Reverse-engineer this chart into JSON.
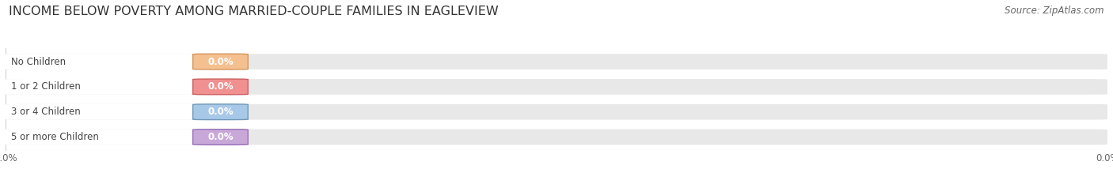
{
  "title": "INCOME BELOW POVERTY AMONG MARRIED-COUPLE FAMILIES IN EAGLEVIEW",
  "source": "Source: ZipAtlas.com",
  "categories": [
    "No Children",
    "1 or 2 Children",
    "3 or 4 Children",
    "5 or more Children"
  ],
  "values": [
    0.0,
    0.0,
    0.0,
    0.0
  ],
  "bar_colors": [
    "#f5c090",
    "#f09090",
    "#a8c8e8",
    "#c8a8d8"
  ],
  "bar_edge_colors": [
    "#d4955a",
    "#cc6060",
    "#7098b8",
    "#9870b8"
  ],
  "background_color": "#ffffff",
  "bar_bg_color": "#e8e8e8",
  "label_bg_color": "#f5f5f5",
  "title_fontsize": 11.5,
  "label_fontsize": 8.5,
  "value_fontsize": 8.5,
  "tick_fontsize": 8.5,
  "source_fontsize": 8.5,
  "fig_width": 14.06,
  "fig_height": 2.33
}
